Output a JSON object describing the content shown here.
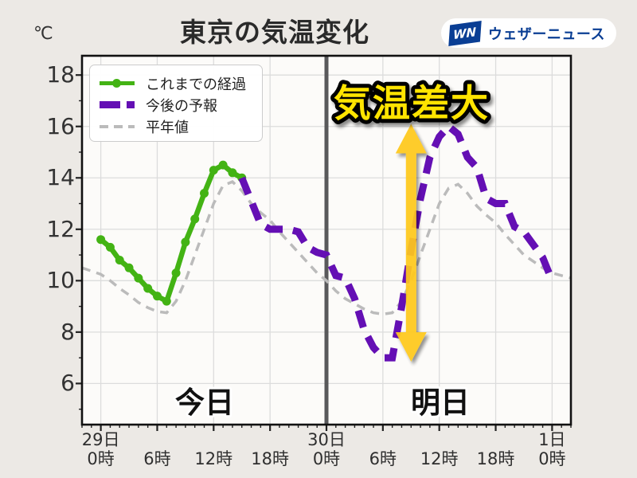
{
  "header": {
    "logo": {
      "mark": "WN",
      "name": "ウェザーニュース",
      "color": "#0a3e94"
    }
  },
  "chart_data": {
    "type": "line",
    "title": "東京の気温変化",
    "y_unit": "℃",
    "ylim": [
      4.4,
      18.75
    ],
    "xlim_hours": [
      -2,
      50
    ],
    "grid": true,
    "legend_position": "top-left",
    "y_ticks": [
      6,
      8,
      10,
      12,
      14,
      16,
      18
    ],
    "x_ticks": [
      {
        "hour": 0,
        "day": "29日",
        "time": "0時"
      },
      {
        "hour": 6,
        "day": "",
        "time": "6時"
      },
      {
        "hour": 12,
        "day": "",
        "time": "12時"
      },
      {
        "hour": 18,
        "day": "",
        "time": "18時"
      },
      {
        "hour": 24,
        "day": "30日",
        "time": "0時"
      },
      {
        "hour": 30,
        "day": "",
        "time": "6時"
      },
      {
        "hour": 36,
        "day": "",
        "time": "12時"
      },
      {
        "hour": 42,
        "day": "",
        "time": "18時"
      },
      {
        "hour": 48,
        "day": "1日",
        "time": "0時"
      }
    ],
    "separator_hour": 24,
    "day_labels": {
      "today": "今日",
      "tomorrow": "明日"
    },
    "annotation": {
      "text": "気温差大",
      "color": "#ffe400"
    },
    "arrow": {
      "x_hour": 33,
      "top_temp": 16.1,
      "bottom_temp": 6.85,
      "color": "#ffc91e"
    },
    "colors": {
      "background": "#ece9e5",
      "plot_bg": "#fcfbf9",
      "grid": "#dcdcdc",
      "frame": "#111111",
      "separator": "#59595b",
      "tick_text": "#333333"
    },
    "series": [
      {
        "key": "observed",
        "name": "これまでの経過",
        "color": "#43b314",
        "style": "solid",
        "marker": true,
        "width": 6.5,
        "z": 1,
        "points": [
          [
            0,
            11.6
          ],
          [
            1,
            11.3
          ],
          [
            2,
            10.8
          ],
          [
            3,
            10.5
          ],
          [
            4,
            10.1
          ],
          [
            5,
            9.7
          ],
          [
            6,
            9.4
          ],
          [
            7,
            9.2
          ],
          [
            8,
            10.3
          ],
          [
            9,
            11.5
          ],
          [
            10,
            12.4
          ],
          [
            11,
            13.4
          ],
          [
            12,
            14.3
          ],
          [
            13,
            14.5
          ],
          [
            14,
            14.2
          ],
          [
            15,
            14.0
          ]
        ]
      },
      {
        "key": "forecast",
        "name": "今後の予報",
        "color": "#640fb4",
        "style": "dashed",
        "dash": "22 13",
        "marker": false,
        "width": 9,
        "z": 2,
        "points": [
          [
            15,
            14.0
          ],
          [
            16,
            13.1
          ],
          [
            17,
            12.2
          ],
          [
            18,
            12.0
          ],
          [
            20,
            12.0
          ],
          [
            21,
            11.9
          ],
          [
            22,
            11.3
          ],
          [
            23,
            11.1
          ],
          [
            24,
            11.0
          ],
          [
            25,
            10.2
          ],
          [
            26,
            10.1
          ],
          [
            27,
            9.3
          ],
          [
            28,
            8.1
          ],
          [
            29,
            7.4
          ],
          [
            30,
            7.0
          ],
          [
            31,
            7.0
          ],
          [
            32,
            9.0
          ],
          [
            33,
            11.2
          ],
          [
            34,
            13.2
          ],
          [
            35,
            14.8
          ],
          [
            36,
            15.6
          ],
          [
            37,
            16.0
          ],
          [
            38,
            15.7
          ],
          [
            39,
            14.8
          ],
          [
            40,
            14.4
          ],
          [
            41,
            13.2
          ],
          [
            42,
            13.0
          ],
          [
            43,
            13.0
          ],
          [
            44,
            12.1
          ],
          [
            45,
            11.9
          ],
          [
            46,
            11.4
          ],
          [
            47,
            10.9
          ],
          [
            48,
            10.0
          ]
        ]
      },
      {
        "key": "normal",
        "name": "平年値",
        "color": "#bbbbbb",
        "style": "dashed",
        "dash": "11 8",
        "marker": false,
        "width": 3.5,
        "z": 0,
        "points": [
          [
            -2,
            10.5
          ],
          [
            0,
            10.25
          ],
          [
            1,
            10.0
          ],
          [
            2,
            9.7
          ],
          [
            3,
            9.45
          ],
          [
            4,
            9.15
          ],
          [
            5,
            8.95
          ],
          [
            6,
            8.8
          ],
          [
            7,
            8.75
          ],
          [
            8,
            9.2
          ],
          [
            9,
            10.0
          ],
          [
            10,
            11.0
          ],
          [
            11,
            12.0
          ],
          [
            12,
            13.0
          ],
          [
            13,
            13.7
          ],
          [
            14,
            13.85
          ],
          [
            15,
            13.5
          ],
          [
            16,
            13.0
          ],
          [
            17,
            12.65
          ],
          [
            18,
            12.35
          ],
          [
            19,
            11.9
          ],
          [
            20,
            11.5
          ],
          [
            21,
            11.1
          ],
          [
            22,
            10.7
          ],
          [
            23,
            10.3
          ],
          [
            24,
            10.0
          ],
          [
            25,
            9.6
          ],
          [
            26,
            9.3
          ],
          [
            27,
            9.1
          ],
          [
            28,
            8.9
          ],
          [
            29,
            8.75
          ],
          [
            30,
            8.7
          ],
          [
            31,
            8.75
          ],
          [
            32,
            9.2
          ],
          [
            33,
            10.0
          ],
          [
            34,
            11.0
          ],
          [
            35,
            12.0
          ],
          [
            36,
            13.0
          ],
          [
            37,
            13.6
          ],
          [
            38,
            13.75
          ],
          [
            39,
            13.4
          ],
          [
            40,
            12.9
          ],
          [
            41,
            12.55
          ],
          [
            42,
            12.25
          ],
          [
            43,
            11.8
          ],
          [
            44,
            11.4
          ],
          [
            45,
            11.0
          ],
          [
            46,
            10.75
          ],
          [
            47,
            10.5
          ],
          [
            48,
            10.3
          ],
          [
            50,
            10.1
          ]
        ]
      }
    ]
  }
}
